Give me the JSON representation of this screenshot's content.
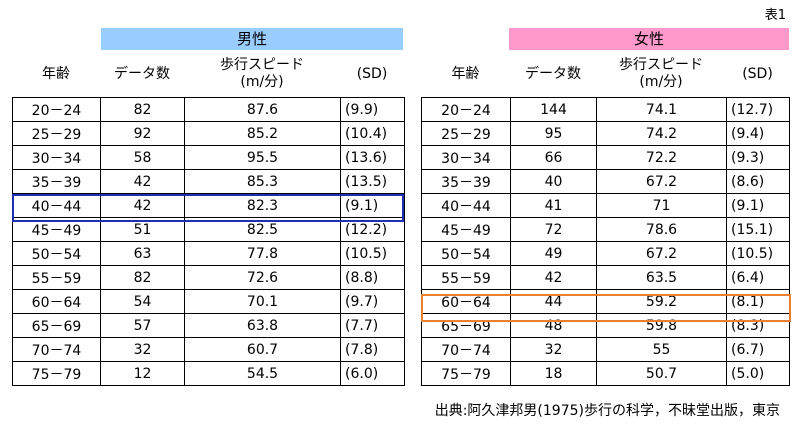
{
  "caption": "表1",
  "male": {
    "group_label": "男性",
    "headers": {
      "age": "年齢",
      "count": "データ数",
      "speed_line1": "歩行スピード",
      "speed_line2": "(m/分)",
      "sd": "(SD)"
    },
    "rows": [
      {
        "age": "20－24",
        "count": "82",
        "speed": "87.6",
        "sd": "(9.9)"
      },
      {
        "age": "25－29",
        "count": "92",
        "speed": "85.2",
        "sd": "(10.4)"
      },
      {
        "age": "30－34",
        "count": "58",
        "speed": "95.5",
        "sd": "(13.6)"
      },
      {
        "age": "35－39",
        "count": "42",
        "speed": "85.3",
        "sd": "(13.5)"
      },
      {
        "age": "40－44",
        "count": "42",
        "speed": "82.3",
        "sd": "(9.1)"
      },
      {
        "age": "45－49",
        "count": "51",
        "speed": "82.5",
        "sd": "(12.2)"
      },
      {
        "age": "50－54",
        "count": "63",
        "speed": "77.8",
        "sd": "(10.5)"
      },
      {
        "age": "55－59",
        "count": "82",
        "speed": "72.6",
        "sd": "(8.8)"
      },
      {
        "age": "60－64",
        "count": "54",
        "speed": "70.1",
        "sd": "(9.7)"
      },
      {
        "age": "65－69",
        "count": "57",
        "speed": "63.8",
        "sd": "(7.7)"
      },
      {
        "age": "70－74",
        "count": "32",
        "speed": "60.7",
        "sd": "(7.8)"
      },
      {
        "age": "75－79",
        "count": "12",
        "speed": "54.5",
        "sd": "(6.0)"
      }
    ]
  },
  "female": {
    "group_label": "女性",
    "headers": {
      "age": "年齢",
      "count": "データ数",
      "speed_line1": "歩行スピード",
      "speed_line2": "(m/分)",
      "sd": "(SD)"
    },
    "rows": [
      {
        "age": "20－24",
        "count": "144",
        "speed": "74.1",
        "sd": "(12.7)"
      },
      {
        "age": "25－29",
        "count": "95",
        "speed": "74.2",
        "sd": "(9.4)"
      },
      {
        "age": "30－34",
        "count": "66",
        "speed": "72.2",
        "sd": "(9.3)"
      },
      {
        "age": "35－39",
        "count": "40",
        "speed": "67.2",
        "sd": "(8.6)"
      },
      {
        "age": "40－44",
        "count": "41",
        "speed": "71",
        "sd": "(9.1)"
      },
      {
        "age": "45－49",
        "count": "72",
        "speed": "78.6",
        "sd": "(15.1)"
      },
      {
        "age": "50－54",
        "count": "49",
        "speed": "67.2",
        "sd": "(10.5)"
      },
      {
        "age": "55－59",
        "count": "42",
        "speed": "63.5",
        "sd": "(6.4)"
      },
      {
        "age": "60－64",
        "count": "44",
        "speed": "59.2",
        "sd": "(8.1)"
      },
      {
        "age": "65－69",
        "count": "48",
        "speed": "59.8",
        "sd": "(8.3)"
      },
      {
        "age": "70－74",
        "count": "32",
        "speed": "55",
        "sd": "(6.7)"
      },
      {
        "age": "75－79",
        "count": "18",
        "speed": "50.7",
        "sd": "(5.0)"
      }
    ]
  },
  "highlights": [
    {
      "table": "male",
      "age": "40－44",
      "color": "#1f2fb3"
    },
    {
      "table": "female",
      "age": "60－64",
      "color": "#ed7d31"
    }
  ],
  "colors": {
    "male_header": "#99ccff",
    "female_header": "#ff99cc"
  },
  "source": "出典:阿久津邦男(1975)歩行の科学，不昧堂出版，東京"
}
